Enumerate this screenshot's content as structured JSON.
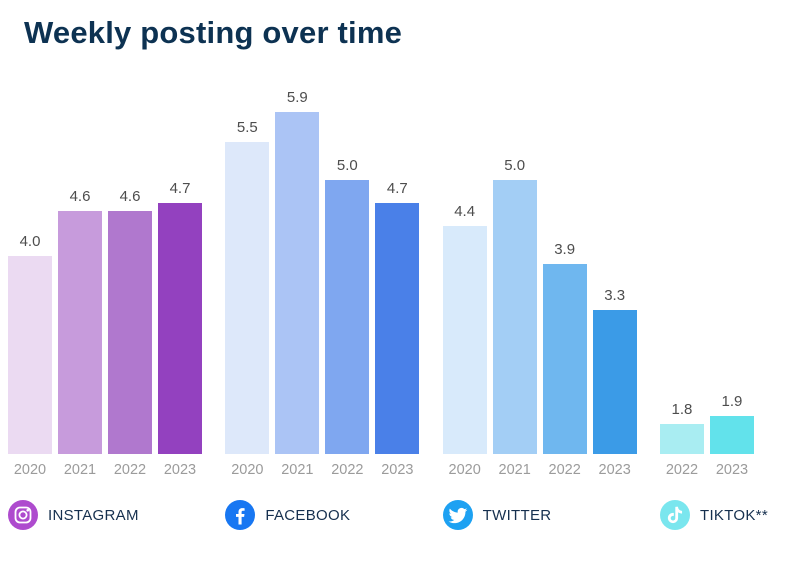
{
  "page": {
    "title": "Weekly posting over time"
  },
  "colors": {
    "title": "#0d3252",
    "value_label": "#4d4d4d",
    "year_label": "#9b9b9b",
    "legend_label": "#16304f"
  },
  "chart_data": {
    "type": "bar",
    "title": "Weekly posting over time",
    "xlabel": "",
    "ylabel": "",
    "value_labels_shown": true,
    "gridlines": false,
    "axis_hidden": true,
    "visual_baseline_value": 1.4,
    "max_value": 5.9,
    "groups": [
      {
        "platform": "Instagram",
        "legend_label": "INSTAGRAM",
        "icon": "instagram-icon",
        "icon_color": "#ae4bce",
        "categories": [
          "2020",
          "2021",
          "2022",
          "2023"
        ],
        "values": [
          4.0,
          4.6,
          4.6,
          4.7
        ],
        "bar_colors": [
          "#ebdaf2",
          "#c79bdc",
          "#b078ce",
          "#9341bf"
        ]
      },
      {
        "platform": "Facebook",
        "legend_label": "FACEBOOK",
        "icon": "facebook-icon",
        "icon_color": "#1877f2",
        "categories": [
          "2020",
          "2021",
          "2022",
          "2023"
        ],
        "values": [
          5.5,
          5.9,
          5.0,
          4.7
        ],
        "bar_colors": [
          "#dde8fa",
          "#abc4f5",
          "#7fa7f0",
          "#4a80e8"
        ]
      },
      {
        "platform": "Twitter",
        "legend_label": "TWITTER",
        "icon": "twitter-icon",
        "icon_color": "#1da1f2",
        "categories": [
          "2020",
          "2021",
          "2022",
          "2023"
        ],
        "values": [
          4.4,
          5.0,
          3.9,
          3.3
        ],
        "bar_colors": [
          "#d8eafb",
          "#a3cef5",
          "#6fb7ef",
          "#3b9be7"
        ]
      },
      {
        "platform": "TikTok",
        "legend_label": "TIKTOK**",
        "icon": "tiktok-icon",
        "icon_color": "#7ae6ee",
        "categories": [
          "2022",
          "2023"
        ],
        "values": [
          1.8,
          1.9
        ],
        "bar_colors": [
          "#a9edf2",
          "#62e2eb"
        ]
      }
    ]
  }
}
